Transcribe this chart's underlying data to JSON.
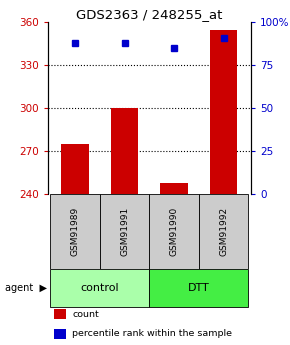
{
  "title": "GDS2363 / 248255_at",
  "samples": [
    "GSM91989",
    "GSM91991",
    "GSM91990",
    "GSM91992"
  ],
  "bar_values": [
    275,
    300,
    248,
    355
  ],
  "percentile_values": [
    88,
    88,
    85,
    91
  ],
  "bar_color": "#cc0000",
  "dot_color": "#0000cc",
  "ylim_left": [
    240,
    360
  ],
  "yticks_left": [
    240,
    270,
    300,
    330,
    360
  ],
  "ylim_right": [
    0,
    100
  ],
  "yticks_right": [
    0,
    25,
    50,
    75,
    100
  ],
  "ytick_labels_right": [
    "0",
    "25",
    "50",
    "75",
    "100%"
  ],
  "groups": [
    {
      "label": "control",
      "color": "#aaffaa"
    },
    {
      "label": "DTT",
      "color": "#44ee44"
    }
  ],
  "agent_label": "agent",
  "bar_width": 0.55,
  "sample_box_color": "#cccccc",
  "background_color": "#ffffff",
  "legend_items": [
    {
      "label": "count",
      "color": "#cc0000"
    },
    {
      "label": "percentile rank within the sample",
      "color": "#0000cc"
    }
  ]
}
